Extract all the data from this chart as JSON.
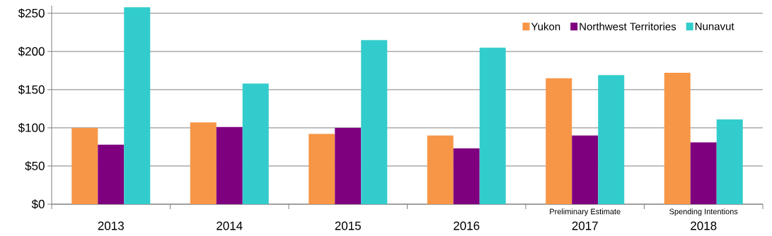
{
  "chart_data": {
    "type": "bar",
    "categories": [
      "2013",
      "2014",
      "2015",
      "2016",
      "2017",
      "2018"
    ],
    "series": [
      {
        "name": "Yukon",
        "color": "#f79646",
        "values": [
          100,
          107,
          92,
          90,
          165,
          172
        ]
      },
      {
        "name": "Northwest Territories",
        "color": "#7f007f",
        "values": [
          78,
          101,
          100,
          73,
          90,
          81
        ]
      },
      {
        "name": "Nunavut",
        "color": "#33cccc",
        "values": [
          258,
          158,
          215,
          205,
          169,
          111
        ]
      }
    ],
    "ylim": [
      0,
      260
    ],
    "yticks": [
      {
        "value": 0,
        "label": "$0"
      },
      {
        "value": 50,
        "label": "$50"
      },
      {
        "value": 100,
        "label": "$100"
      },
      {
        "value": 150,
        "label": "$150"
      },
      {
        "value": 200,
        "label": "$200"
      },
      {
        "value": 250,
        "label": "$250"
      }
    ],
    "annotations": [
      "Preliminary Estimate",
      "Spending Intentions"
    ],
    "grid": "y",
    "legend": "top right"
  }
}
